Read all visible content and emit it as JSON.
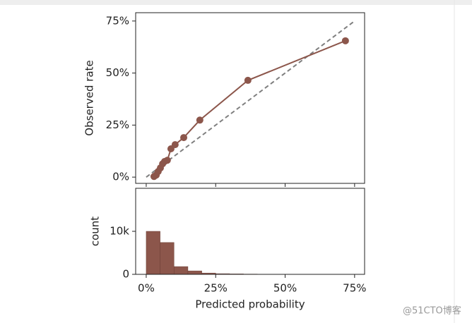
{
  "chart_data": [
    {
      "type": "line",
      "y_label": "Observed rate",
      "x": [
        2.8,
        3.6,
        4.3,
        5.1,
        5.9,
        6.6,
        7.6,
        8.9,
        10.4,
        13.5,
        19.3,
        36.6,
        71.7
      ],
      "series": [
        {
          "color": "#8c564b",
          "values": [
            0.3,
            1,
            2.7,
            4.4,
            6.4,
            7.5,
            8.1,
            13.6,
            15.6,
            19,
            27.4,
            46.5,
            65.5
          ]
        }
      ],
      "reference_line": {
        "color": "#7f7f7f",
        "style": "dashed"
      },
      "xlim": [
        -3.8,
        78.6
      ],
      "xticks": [
        0,
        25,
        50,
        75
      ],
      "ylim": [
        -3,
        79
      ],
      "yticks": [
        {
          "value": 0,
          "label": "0%"
        },
        {
          "value": 25,
          "label": "25%"
        },
        {
          "value": 50,
          "label": "50%"
        },
        {
          "value": 75,
          "label": "75%"
        }
      ]
    },
    {
      "type": "histogram",
      "x_label": "Predicted probability",
      "y_label": "count",
      "color": "#8c564b",
      "bins": [
        0,
        5,
        10,
        15,
        20,
        25,
        30,
        35,
        40,
        45,
        50,
        55,
        60,
        65,
        70,
        75
      ],
      "values": [
        10000,
        7400,
        1800,
        800,
        300,
        150,
        100,
        60,
        40,
        30,
        20,
        15,
        10,
        10,
        10
      ],
      "xlim": [
        -3.8,
        78.6
      ],
      "xticks": [
        {
          "value": 0,
          "label": "0%"
        },
        {
          "value": 25,
          "label": "25%"
        },
        {
          "value": 50,
          "label": "50%"
        },
        {
          "value": 75,
          "label": "75%"
        }
      ],
      "ylim": [
        0,
        20000
      ],
      "yticks": [
        0,
        {
          "value": 10000,
          "label": "10k"
        }
      ]
    }
  ],
  "watermark": "@51CTO博客"
}
